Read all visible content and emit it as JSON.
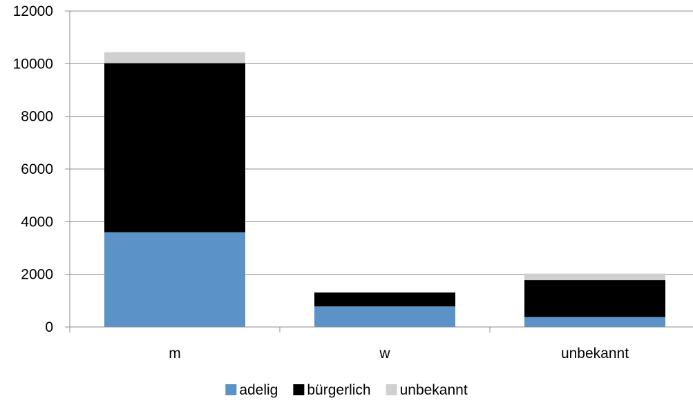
{
  "chart_data": {
    "type": "bar",
    "stacked": true,
    "categories": [
      "m",
      "w",
      "unbekannt"
    ],
    "series": [
      {
        "name": "adelig",
        "values": [
          3600,
          780,
          380
        ],
        "color": "#5b93c8"
      },
      {
        "name": "bürgerlich",
        "values": [
          6420,
          530,
          1400
        ],
        "color": "#000000"
      },
      {
        "name": "unbekannt",
        "values": [
          420,
          0,
          250
        ],
        "color": "#d0d0d0"
      }
    ],
    "ylim": [
      0,
      12000
    ],
    "yticks": [
      "0",
      "2000",
      "4000",
      "6000",
      "8000",
      "10000",
      "12000"
    ],
    "grid": true,
    "legend_position": "bottom-center"
  }
}
